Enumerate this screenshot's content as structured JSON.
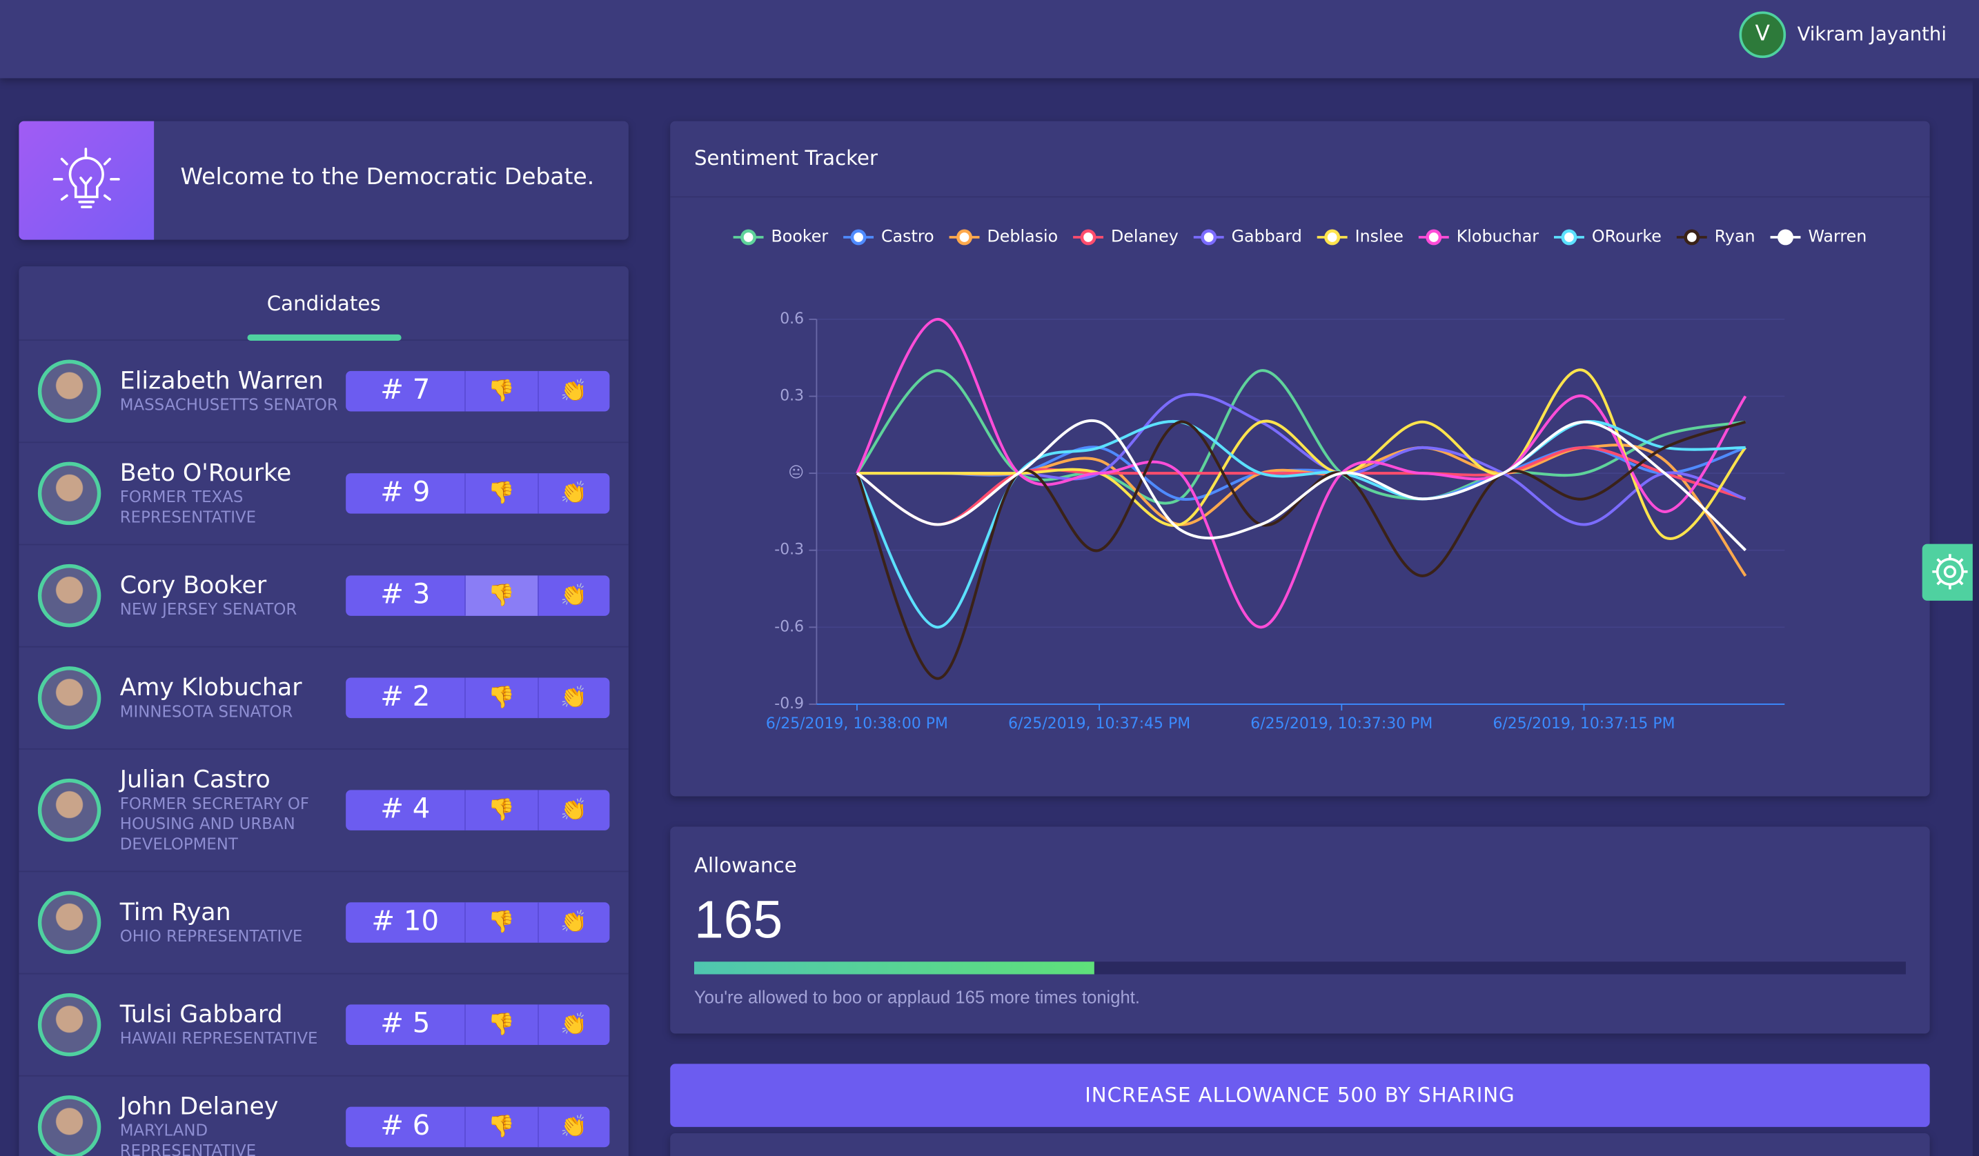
{
  "header": {
    "user_initial": "V",
    "user_name": "Vikram Jayanthi"
  },
  "welcome": "Welcome to the Democratic Debate.",
  "candidates_title": "Candidates",
  "icons": {
    "boo": "👎",
    "applaud": "👏"
  },
  "candidates": [
    {
      "name": "Elizabeth Warren",
      "title": "MASSACHUSETTS SENATOR",
      "rank": "# 7"
    },
    {
      "name": "Beto O'Rourke",
      "title": "FORMER TEXAS REPRESENTATIVE",
      "rank": "# 9"
    },
    {
      "name": "Cory Booker",
      "title": "NEW JERSEY SENATOR",
      "rank": "# 3",
      "active": "boo"
    },
    {
      "name": "Amy Klobuchar",
      "title": "MINNESOTA SENATOR",
      "rank": "# 2"
    },
    {
      "name": "Julian Castro",
      "title": "FORMER SECRETARY OF HOUSING AND URBAN DEVELOPMENT",
      "rank": "# 4"
    },
    {
      "name": "Tim Ryan",
      "title": "OHIO REPRESENTATIVE",
      "rank": "# 10"
    },
    {
      "name": "Tulsi Gabbard",
      "title": "HAWAII REPRESENTATIVE",
      "rank": "# 5"
    },
    {
      "name": "John Delaney",
      "title": "MARYLAND REPRESENTATIVE",
      "rank": "# 6"
    }
  ],
  "chart_data": {
    "type": "line",
    "title": "Sentiment Tracker",
    "categories": [
      "6/25/2019, 10:38:00 PM",
      null,
      null,
      "6/25/2019, 10:37:45 PM",
      null,
      null,
      "6/25/2019, 10:37:30 PM",
      null,
      null,
      "6/25/2019, 10:37:15 PM",
      null,
      null
    ],
    "ylim": [
      -0.9,
      0.6
    ],
    "yticks": [
      -0.9,
      -0.6,
      -0.3,
      {
        "value": 0,
        "label": "😐"
      },
      0.3,
      0.6
    ],
    "grid": true,
    "legend": "top",
    "series": [
      {
        "name": "Booker",
        "color": "#5fd39b",
        "values": [
          0,
          0.4,
          0,
          0,
          -0.1,
          0.4,
          0,
          -0.1,
          0,
          0,
          0.15,
          0.2
        ]
      },
      {
        "name": "Castro",
        "color": "#4f8bff",
        "values": [
          0,
          0,
          0,
          0.1,
          -0.1,
          0,
          0,
          -0.1,
          0,
          0.1,
          0,
          0.1
        ]
      },
      {
        "name": "Deblasio",
        "color": "#ffa94d",
        "values": [
          0,
          0,
          0,
          0.05,
          -0.2,
          0,
          0,
          0.1,
          0,
          0.1,
          0.05,
          -0.4
        ]
      },
      {
        "name": "Delaney",
        "color": "#ff4d6d",
        "values": [
          0,
          -0.2,
          0,
          0,
          0,
          0,
          0,
          0,
          0,
          0.1,
          0,
          -0.1
        ]
      },
      {
        "name": "Gabbard",
        "color": "#7b6cff",
        "values": [
          0,
          0,
          0,
          0,
          0.3,
          0.2,
          0,
          0.1,
          0,
          -0.2,
          0,
          -0.1
        ]
      },
      {
        "name": "Inslee",
        "color": "#ffe44d",
        "values": [
          0,
          0,
          0,
          0,
          -0.2,
          0.2,
          0,
          0.2,
          0,
          0.4,
          -0.25,
          0.1
        ]
      },
      {
        "name": "Klobuchar",
        "color": "#ff4dd8",
        "values": [
          0,
          0.6,
          0,
          0,
          0,
          -0.6,
          0,
          0,
          0,
          0.3,
          -0.15,
          0.3
        ]
      },
      {
        "name": "ORourke",
        "color": "#5ce1ff",
        "values": [
          0,
          -0.6,
          0,
          0.1,
          0.2,
          0,
          0,
          -0.1,
          0,
          0.2,
          0.1,
          0.1
        ]
      },
      {
        "name": "Ryan",
        "color": "#3a2218",
        "values": [
          0,
          -0.8,
          0,
          -0.3,
          0.2,
          -0.2,
          0,
          -0.4,
          0,
          -0.1,
          0.1,
          0.2
        ]
      },
      {
        "name": "Warren",
        "color": "#ffffff",
        "values": [
          0,
          -0.2,
          0,
          0.2,
          -0.22,
          -0.2,
          0,
          -0.1,
          0,
          0.2,
          0,
          -0.3
        ]
      }
    ]
  },
  "allowance": {
    "title": "Allowance",
    "value": 165,
    "xlim": [
      0,
      500
    ],
    "note": "You're allowed to boo or applaud 165 more times tonight."
  },
  "share_button": "INCREASE ALLOWANCE 500 BY SHARING"
}
